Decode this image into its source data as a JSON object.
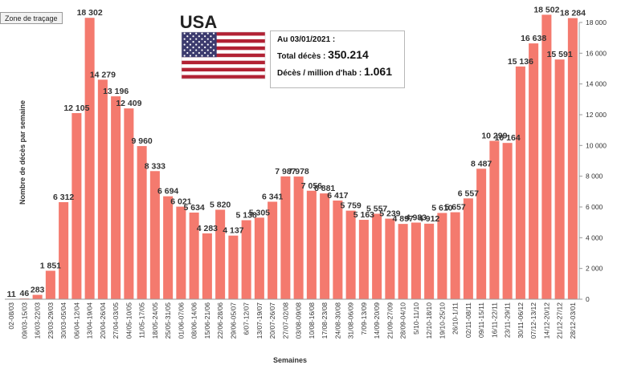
{
  "overlay": {
    "zone_label": "Zone de traçage"
  },
  "colors": {
    "bar": "#f47a6e",
    "axis": "#9a9a9a",
    "tick_text": "#333333",
    "label_text": "#333333"
  },
  "country_label": "USA",
  "flag_icon": "us-flag-icon",
  "info": {
    "date_label": "Au 03/01/2021  :",
    "total_label": "Total décès : ",
    "total_value": "350.214",
    "per_million_label": "Décès / million d'hab : ",
    "per_million_value": "1.061"
  },
  "chart_data": {
    "type": "bar",
    "title": "",
    "xlabel": "Semaines",
    "ylabel": "Nombre de décès par semaine",
    "ylim": [
      0,
      18000
    ],
    "y_axis_side": "right",
    "yticks": [
      0,
      2000,
      4000,
      6000,
      8000,
      10000,
      12000,
      14000,
      16000,
      18000
    ],
    "ytick_labels": [
      "0",
      "2 000",
      "4 000",
      "6 000",
      "8 000",
      "10 000",
      "12 000",
      "14 000",
      "16 000",
      "18 000"
    ],
    "grid": false,
    "categories": [
      "02-08/03",
      "09/03-15/03",
      "16/03-22/03",
      "23/03-29/03",
      "30/03-05/04",
      "06/04-12/04",
      "13/04-19/04",
      "20/04-26/04",
      "27/04-03/05",
      "04/05-10/05",
      "11/05-17/05",
      "18/05-24/05",
      "25/05-31/05",
      "01/06-07/06",
      "08/06-14/06",
      "15/06-21/06",
      "22/06-28/06",
      "29/06-05/07",
      "6/07-12/07",
      "13/07-19/07",
      "20/07-26/07",
      "27/07-02/08",
      "03/08-09/08",
      "10/08-16/08",
      "17/08-23/08",
      "24/08-30/08",
      "31/08-06/09",
      "7/09-13/09",
      "14/09-20/09",
      "21/09-27/09",
      "28/09-04/10",
      "5/10-11/10",
      "12/10-18/10",
      "19/10-25/10",
      "26/10-1/11",
      "02/11-08/11",
      "09/11-15/11",
      "16/11-22/11",
      "23/11-29/11",
      "30/11-06/12",
      "07/12-13/12",
      "14/12-20/12",
      "21/12-27/12",
      "28/12-03/01"
    ],
    "values": [
      11,
      46,
      283,
      1851,
      6312,
      12105,
      18302,
      14279,
      13196,
      12409,
      9960,
      8333,
      6694,
      6021,
      5634,
      4283,
      5820,
      4137,
      5138,
      5305,
      6341,
      7987,
      7978,
      7056,
      6881,
      6417,
      5759,
      5163,
      5557,
      5239,
      4897,
      4983,
      4912,
      5610,
      5657,
      6557,
      8487,
      10299,
      10164,
      15136,
      16638,
      18502,
      15591,
      18284
    ],
    "data_labels": [
      "11",
      "46",
      "283",
      "1 851",
      "6 312",
      "12 105",
      "18 302",
      "14 279",
      "13 196",
      "12 409",
      "9 960",
      "8 333",
      "6 694",
      "6 021",
      "5 634",
      "4 283",
      "5 820",
      "4 137",
      "5 138",
      "5 305",
      "6 341",
      "7 987",
      "7 978",
      "7 056",
      "6 881",
      "6 417",
      "5 759",
      "5 163",
      "5 557",
      "5 239",
      "4 897",
      "4 983",
      "4 912",
      "5 610",
      "5 657",
      "6 557",
      "8 487",
      "10 299",
      "10 164",
      "15 136",
      "16 638",
      "18 502",
      "15 591",
      "18 284"
    ]
  }
}
